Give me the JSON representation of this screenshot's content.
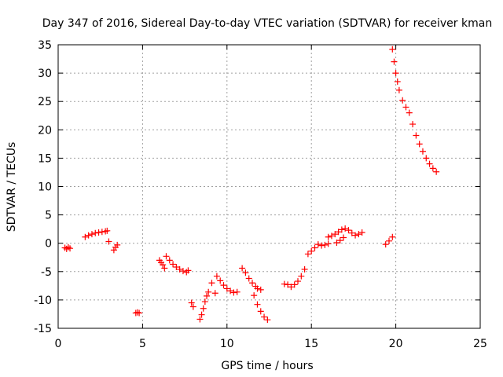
{
  "chart_data": {
    "type": "scatter",
    "title": "Day 347 of 2016, Sidereal Day-to-day VTEC variation (SDTVAR) for receiver kman",
    "xlabel": "GPS time / hours",
    "ylabel": "SDTVAR / TECUs",
    "xlim": [
      0,
      25
    ],
    "ylim": [
      -15,
      35
    ],
    "xticks": [
      0,
      5,
      10,
      15,
      20,
      25
    ],
    "yticks": [
      -15,
      -10,
      -5,
      0,
      5,
      10,
      15,
      20,
      25,
      30,
      35
    ],
    "xtick_labels": [
      "0",
      "5",
      "10",
      "15",
      "20",
      "25"
    ],
    "ytick_labels": [
      "-15",
      "-10",
      "-5",
      "0",
      "5",
      "10",
      "15",
      "20",
      "25",
      "30",
      "35"
    ],
    "grid": true,
    "marker": "plus",
    "color": "#ff0000",
    "series": [
      {
        "name": "seg1",
        "x": [
          0.4,
          0.5,
          0.6,
          0.7
        ],
        "y": [
          -0.8,
          -1.0,
          -0.7,
          -0.9
        ]
      },
      {
        "name": "seg2",
        "x": [
          1.6,
          1.8,
          2.0,
          2.2,
          2.4,
          2.6,
          2.8,
          2.9
        ],
        "y": [
          1.1,
          1.4,
          1.6,
          1.8,
          1.9,
          2.0,
          2.1,
          2.2
        ]
      },
      {
        "name": "seg3",
        "x": [
          3.0
        ],
        "y": [
          0.3
        ]
      },
      {
        "name": "seg4",
        "x": [
          3.3,
          3.4,
          3.5
        ],
        "y": [
          -1.2,
          -0.7,
          -0.3
        ]
      },
      {
        "name": "seg5",
        "x": [
          4.6,
          4.7,
          4.8
        ],
        "y": [
          -12.3,
          -12.2,
          -12.3
        ]
      },
      {
        "name": "seg6",
        "x": [
          6.0,
          6.1,
          6.2,
          6.3
        ],
        "y": [
          -3.0,
          -3.4,
          -3.8,
          -4.4
        ]
      },
      {
        "name": "seg7",
        "x": [
          6.4,
          6.6,
          6.8,
          7.0,
          7.2,
          7.4,
          7.6,
          7.7
        ],
        "y": [
          -2.3,
          -3.0,
          -3.7,
          -4.2,
          -4.6,
          -4.9,
          -5.1,
          -4.8
        ]
      },
      {
        "name": "seg8",
        "x": [
          7.9,
          8.0
        ],
        "y": [
          -10.5,
          -11.2
        ]
      },
      {
        "name": "seg9",
        "x": [
          8.4,
          8.5,
          8.6,
          8.7,
          8.8,
          8.9
        ],
        "y": [
          -13.4,
          -12.6,
          -11.5,
          -10.3,
          -9.3,
          -8.6
        ]
      },
      {
        "name": "seg10",
        "x": [
          9.1,
          9.3
        ],
        "y": [
          -7.0,
          -8.8
        ]
      },
      {
        "name": "seg11",
        "x": [
          9.4,
          9.6,
          9.8,
          10.0,
          10.2,
          10.4,
          10.6
        ],
        "y": [
          -5.8,
          -6.6,
          -7.4,
          -8.0,
          -8.4,
          -8.7,
          -8.6
        ]
      },
      {
        "name": "seg12",
        "x": [
          10.9,
          11.1,
          11.3,
          11.5,
          11.7,
          11.8,
          12.0
        ],
        "y": [
          -4.4,
          -5.2,
          -6.2,
          -7.0,
          -7.6,
          -8.0,
          -8.2
        ]
      },
      {
        "name": "seg13",
        "x": [
          11.6,
          11.8,
          12.0,
          12.2,
          12.4
        ],
        "y": [
          -9.2,
          -10.8,
          -12.0,
          -13.0,
          -13.5
        ]
      },
      {
        "name": "seg14",
        "x": [
          13.4,
          13.6,
          13.8,
          14.0,
          14.2,
          14.4,
          14.6
        ],
        "y": [
          -7.2,
          -7.3,
          -7.7,
          -7.3,
          -6.7,
          -5.8,
          -4.6
        ]
      },
      {
        "name": "seg15",
        "x": [
          14.8,
          15.0,
          15.2,
          15.4,
          15.6,
          15.8,
          16.0
        ],
        "y": [
          -1.9,
          -1.4,
          -0.8,
          -0.2,
          -0.4,
          -0.3,
          -0.1
        ]
      },
      {
        "name": "seg16",
        "x": [
          16.0,
          16.2,
          16.4,
          16.6,
          16.8,
          17.0,
          17.2,
          17.4,
          17.6,
          17.8,
          18.0
        ],
        "y": [
          1.1,
          1.3,
          1.6,
          2.0,
          2.4,
          2.6,
          2.3,
          1.8,
          1.4,
          1.6,
          1.9
        ]
      },
      {
        "name": "seg17",
        "x": [
          16.5,
          16.7,
          16.9
        ],
        "y": [
          0.1,
          0.5,
          1.0
        ]
      },
      {
        "name": "seg18",
        "x": [
          19.4,
          19.6,
          19.8
        ],
        "y": [
          -0.2,
          0.4,
          1.1
        ]
      },
      {
        "name": "seg19",
        "x": [
          19.8,
          19.9,
          20.0,
          20.1,
          20.2,
          20.4,
          20.6,
          20.8,
          21.0,
          21.2,
          21.4,
          21.6,
          21.8,
          22.0,
          22.2,
          22.4
        ],
        "y": [
          34.2,
          32.0,
          30.0,
          28.5,
          27.0,
          25.2,
          24.0,
          23.0,
          21.0,
          19.0,
          17.5,
          16.2,
          15.0,
          14.0,
          13.2,
          12.6
        ]
      }
    ]
  }
}
